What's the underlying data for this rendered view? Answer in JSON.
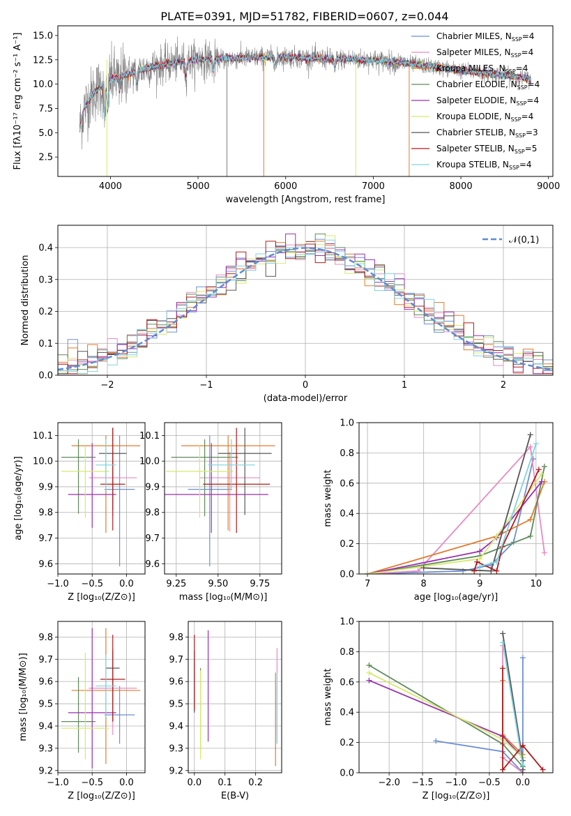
{
  "figure": {
    "title": "PLATE=0391, MJD=51782, FIBERID=0607, z=0.044"
  },
  "models": [
    {
      "name": "Chabrier MILES",
      "nssp": "4",
      "color": "#6b8fd6"
    },
    {
      "name": "Salpeter MILES",
      "nssp": "4",
      "color": "#e78ac3"
    },
    {
      "name": "Kroupa MILES",
      "nssp": "4",
      "color": "#e07b2a"
    },
    {
      "name": "Chabrier ELODIE",
      "nssp": "4",
      "color": "#5e8a5a"
    },
    {
      "name": "Salpeter ELODIE",
      "nssp": "4",
      "color": "#9a2fb0"
    },
    {
      "name": "Kroupa ELODIE",
      "nssp": "4",
      "color": "#d6e96a"
    },
    {
      "name": "Chabrier STELIB",
      "nssp": "3",
      "color": "#555555"
    },
    {
      "name": "Salpeter STELIB",
      "nssp": "5",
      "color": "#b01a1a"
    },
    {
      "name": "Kroupa STELIB",
      "nssp": "4",
      "color": "#7fd3de"
    }
  ],
  "chart_data": [
    {
      "id": "spectrum",
      "type": "line",
      "xlabel": "wavelength [Angstrom, rest frame]",
      "ylabel": "Flux [fλ10⁻¹⁷ erg cm⁻² s⁻¹ A⁻¹]",
      "xlim": [
        3400,
        9050
      ],
      "ylim": [
        0.5,
        16
      ],
      "xticks": [
        4000,
        5000,
        6000,
        7000,
        8000,
        9000
      ],
      "yticks": [
        2.5,
        5.0,
        7.5,
        10.0,
        12.5,
        15.0
      ],
      "continuum": {
        "x": [
          3650,
          3700,
          3800,
          3900,
          4000,
          4100,
          4200,
          4400,
          4600,
          4800,
          5000,
          5500,
          6000,
          6500,
          7000,
          7500,
          8000,
          8500,
          8800
        ],
        "y": [
          5.5,
          7.5,
          9.0,
          9.8,
          10.5,
          10.8,
          11.0,
          11.6,
          12.0,
          12.3,
          12.5,
          12.7,
          12.8,
          12.6,
          12.5,
          12.0,
          11.4,
          10.9,
          10.5
        ]
      },
      "legend": "upper right"
    },
    {
      "id": "residuals",
      "type": "histogram",
      "xlabel": "(data-model)/error",
      "ylabel": "Normed distribution",
      "xlim": [
        -2.5,
        2.5
      ],
      "ylim": [
        0,
        0.47
      ],
      "xticks": [
        -2,
        -1,
        0,
        1,
        2
      ],
      "yticks": [
        0.0,
        0.1,
        0.2,
        0.3,
        0.4
      ],
      "grid": true,
      "reference_curve": {
        "label": "𝒩(0,1)",
        "mean": 0,
        "sigma": 1
      },
      "bin_width": 0.1,
      "legend": "upper right"
    },
    {
      "id": "age_vs_Z",
      "type": "scatter",
      "xlabel": "Z [log₁₀(Z/Z⊙)]",
      "ylabel": "age  [log₁₀(age/yr)]",
      "xlim": [
        -1.0,
        0.27
      ],
      "ylim": [
        9.56,
        10.15
      ],
      "xticks": [
        -1.0,
        -0.5,
        0.0
      ],
      "yticks": [
        9.6,
        9.7,
        9.8,
        9.9,
        10.0,
        10.1
      ],
      "points": [
        {
          "x": -0.1,
          "y": 9.89,
          "xerr": 0.22,
          "yerr": [
            0.3,
            0.21
          ]
        },
        {
          "x": -0.2,
          "y": 9.935,
          "xerr": 0.35,
          "yerr": [
            0.15,
            0.1
          ]
        },
        {
          "x": -0.3,
          "y": 10.06,
          "xerr": 0.5,
          "yerr": [
            0.34,
            0.04
          ]
        },
        {
          "x": -0.7,
          "y": 10.015,
          "xerr": 0.25,
          "yerr": [
            0.22,
            0.07
          ]
        },
        {
          "x": -0.5,
          "y": 9.87,
          "xerr": 0.35,
          "yerr": [
            0.13,
            0.2
          ]
        },
        {
          "x": -0.6,
          "y": 9.96,
          "xerr": 0.35,
          "yerr": [
            0.18,
            0.1
          ]
        },
        {
          "x": -0.2,
          "y": 10.03,
          "xerr": 0.2,
          "yerr": [
            0.22,
            0.1
          ]
        },
        {
          "x": -0.2,
          "y": 9.91,
          "xerr": 0.18,
          "yerr": [
            0.18,
            0.22
          ]
        },
        {
          "x": -0.3,
          "y": 9.985,
          "xerr": 0.15,
          "yerr": [
            0.1,
            0.1
          ]
        }
      ]
    },
    {
      "id": "age_vs_mass",
      "type": "scatter",
      "xlabel": "mass [log₁₀(M/M⊙)]",
      "ylabel": "",
      "xlim": [
        9.18,
        9.88
      ],
      "ylim": [
        9.56,
        10.15
      ],
      "xticks": [
        9.25,
        9.5,
        9.75
      ],
      "yticks": [
        9.6,
        9.7,
        9.8,
        9.9,
        10.0,
        10.1
      ],
      "points": [
        {
          "x": 9.45,
          "y": 9.89,
          "xerr": 0.13,
          "yerr": [
            0.3,
            0.21
          ]
        },
        {
          "x": 9.57,
          "y": 9.935,
          "xerr": 0.18,
          "yerr": [
            0.21,
            0.1
          ]
        },
        {
          "x": 9.56,
          "y": 10.06,
          "xerr": 0.28,
          "yerr": [
            0.33,
            0.04
          ]
        },
        {
          "x": 9.42,
          "y": 10.015,
          "xerr": 0.2,
          "yerr": [
            0.23,
            0.07
          ]
        },
        {
          "x": 9.46,
          "y": 9.87,
          "xerr": 0.34,
          "yerr": [
            0.15,
            0.2
          ]
        },
        {
          "x": 9.39,
          "y": 9.96,
          "xerr": 0.2,
          "yerr": [
            0.18,
            0.1
          ]
        },
        {
          "x": 9.66,
          "y": 10.03,
          "xerr": 0.16,
          "yerr": [
            0.24,
            0.1
          ]
        },
        {
          "x": 9.61,
          "y": 9.91,
          "xerr": 0.2,
          "yerr": [
            0.19,
            0.22
          ]
        },
        {
          "x": 9.58,
          "y": 9.985,
          "xerr": 0.14,
          "yerr": [
            0.1,
            0.1
          ]
        }
      ]
    },
    {
      "id": "weight_vs_age",
      "type": "line",
      "xlabel": "age  [log₁₀(age/yr)]",
      "ylabel": "mass weight",
      "xlim": [
        6.85,
        10.3
      ],
      "ylim": [
        0.0,
        1.0
      ],
      "xticks": [
        7,
        8,
        9,
        10
      ],
      "yticks": [
        0.0,
        0.2,
        0.4,
        0.6,
        0.8,
        1.0
      ],
      "grid": true,
      "series": [
        {
          "x": [
            7.0,
            8.7,
            9.2,
            9.6,
            9.95
          ],
          "y": [
            0.0,
            0.02,
            0.06,
            0.21,
            0.76
          ]
        },
        {
          "x": [
            7.0,
            7.9,
            9.9,
            10.15
          ],
          "y": [
            0.0,
            0.02,
            0.84,
            0.14
          ]
        },
        {
          "x": [
            7.0,
            9.3,
            9.9,
            10.15
          ],
          "y": [
            0.0,
            0.25,
            0.36,
            0.61
          ]
        },
        {
          "x": [
            7.0,
            9.0,
            9.9,
            10.15
          ],
          "y": [
            0.0,
            0.12,
            0.25,
            0.71
          ]
        },
        {
          "x": [
            7.0,
            9.0,
            9.3,
            10.1
          ],
          "y": [
            0.0,
            0.15,
            0.24,
            0.61
          ]
        },
        {
          "x": [
            7.0,
            9.0,
            9.3,
            10.1
          ],
          "y": [
            0.0,
            0.1,
            0.25,
            0.66
          ]
        },
        {
          "x": [
            8.0,
            9.2,
            9.9
          ],
          "y": [
            0.04,
            0.02,
            0.92
          ]
        },
        {
          "x": [
            8.9,
            8.95,
            9.3,
            9.4,
            10.05
          ],
          "y": [
            0.02,
            0.08,
            0.02,
            0.18,
            0.69
          ]
        },
        {
          "x": [
            9.0,
            9.3,
            10.0
          ],
          "y": [
            0.05,
            0.08,
            0.86
          ]
        }
      ]
    },
    {
      "id": "mass_vs_Z",
      "type": "scatter",
      "xlabel": "Z [log₁₀(Z/Z⊙)]",
      "ylabel": "mass [log₁₀(M/M⊙)]",
      "xlim": [
        -1.0,
        0.27
      ],
      "ylim": [
        9.19,
        9.87
      ],
      "xticks": [
        -1.0,
        -0.5,
        0.0
      ],
      "yticks": [
        9.2,
        9.3,
        9.4,
        9.5,
        9.6,
        9.7,
        9.8
      ],
      "points": [
        {
          "x": -0.1,
          "y": 9.45,
          "xerr": 0.22,
          "yerr": [
            0.13,
            0.13
          ]
        },
        {
          "x": -0.2,
          "y": 9.57,
          "xerr": 0.35,
          "yerr": [
            0.21,
            0.18
          ]
        },
        {
          "x": -0.3,
          "y": 9.56,
          "xerr": 0.5,
          "yerr": [
            0.33,
            0.28
          ]
        },
        {
          "x": -0.7,
          "y": 9.42,
          "xerr": 0.25,
          "yerr": [
            0.14,
            0.2
          ]
        },
        {
          "x": -0.5,
          "y": 9.46,
          "xerr": 0.35,
          "yerr": [
            0.25,
            0.38
          ]
        },
        {
          "x": -0.6,
          "y": 9.39,
          "xerr": 0.35,
          "yerr": [
            0.14,
            0.34
          ]
        },
        {
          "x": -0.2,
          "y": 9.66,
          "xerr": 0.1,
          "yerr": [
            0.24,
            0.08
          ]
        },
        {
          "x": -0.2,
          "y": 9.61,
          "xerr": 0.18,
          "yerr": [
            0.19,
            0.2
          ]
        },
        {
          "x": -0.3,
          "y": 9.58,
          "xerr": 0.15,
          "yerr": [
            0.14,
            0.14
          ]
        }
      ]
    },
    {
      "id": "mass_vs_ebv",
      "type": "scatter",
      "xlabel": "E(B-V)",
      "ylabel": "",
      "xlim": [
        -0.02,
        0.285
      ],
      "ylim": [
        9.19,
        9.87
      ],
      "xticks": [
        0.0,
        0.1,
        0.2
      ],
      "yticks": [
        9.2,
        9.3,
        9.4,
        9.5,
        9.6,
        9.7,
        9.8
      ],
      "points": [
        {
          "x": 0.27,
          "y": 9.45,
          "xerr": 0,
          "yerr": [
            0.13,
            0.13
          ]
        },
        {
          "x": 0.27,
          "y": 9.57,
          "xerr": 0,
          "yerr": [
            0.21,
            0.18
          ]
        },
        {
          "x": 0.265,
          "y": 9.46,
          "xerr": 0,
          "yerr": [
            0.24,
            0.18
          ]
        },
        {
          "x": 0.02,
          "y": 9.46,
          "xerr": 0,
          "yerr": [
            0.16,
            0.2
          ]
        },
        {
          "x": 0.045,
          "y": 9.5,
          "xerr": 0,
          "yerr": [
            0.17,
            0.33
          ]
        },
        {
          "x": 0.02,
          "y": 9.45,
          "xerr": 0,
          "yerr": [
            0.2,
            0.2
          ]
        },
        {
          "x": 0.0,
          "y": 9.6,
          "xerr": 0,
          "yerr": [
            0.14,
            0.14
          ]
        },
        {
          "x": 0.0,
          "y": 9.64,
          "xerr": 0,
          "yerr": [
            0.17,
            0.17
          ]
        },
        {
          "x": 0.27,
          "y": 9.5,
          "xerr": 0,
          "yerr": [
            0.18,
            0.14
          ]
        }
      ]
    },
    {
      "id": "weight_vs_Z",
      "type": "line",
      "xlabel": "Z [log₁₀(Z/Z⊙)]",
      "ylabel": "mass weight",
      "xlim": [
        -2.45,
        0.45
      ],
      "ylim": [
        0.0,
        1.0
      ],
      "xticks": [
        -2.0,
        -1.5,
        -1.0,
        -0.5,
        0.0
      ],
      "yticks": [
        0.0,
        0.2,
        0.4,
        0.6,
        0.8,
        1.0
      ],
      "grid": true,
      "series": [
        {
          "x": [
            -1.3,
            -0.3,
            0.0,
            0.0
          ],
          "y": [
            0.21,
            0.14,
            0.0,
            0.76
          ]
        },
        {
          "x": [
            -0.3,
            -0.3,
            0.0
          ],
          "y": [
            0.84,
            0.1,
            0.0
          ]
        },
        {
          "x": [
            -0.3,
            -0.3,
            0.0
          ],
          "y": [
            0.61,
            0.25,
            0.12
          ]
        },
        {
          "x": [
            -2.3,
            -0.3,
            0.0
          ],
          "y": [
            0.71,
            0.19,
            0.04
          ]
        },
        {
          "x": [
            -2.3,
            -0.3,
            0.0
          ],
          "y": [
            0.61,
            0.24,
            0.1
          ]
        },
        {
          "x": [
            -2.3,
            -0.3,
            0.0
          ],
          "y": [
            0.66,
            0.22,
            0.1
          ]
        },
        {
          "x": [
            -0.3,
            0.0,
            0.0
          ],
          "y": [
            0.92,
            0.08,
            0.02
          ]
        },
        {
          "x": [
            -0.3,
            -0.3,
            0.0,
            0.3
          ],
          "y": [
            0.69,
            0.02,
            0.18,
            0.02
          ]
        },
        {
          "x": [
            -0.3,
            0.0
          ],
          "y": [
            0.86,
            0.05
          ]
        }
      ]
    }
  ]
}
